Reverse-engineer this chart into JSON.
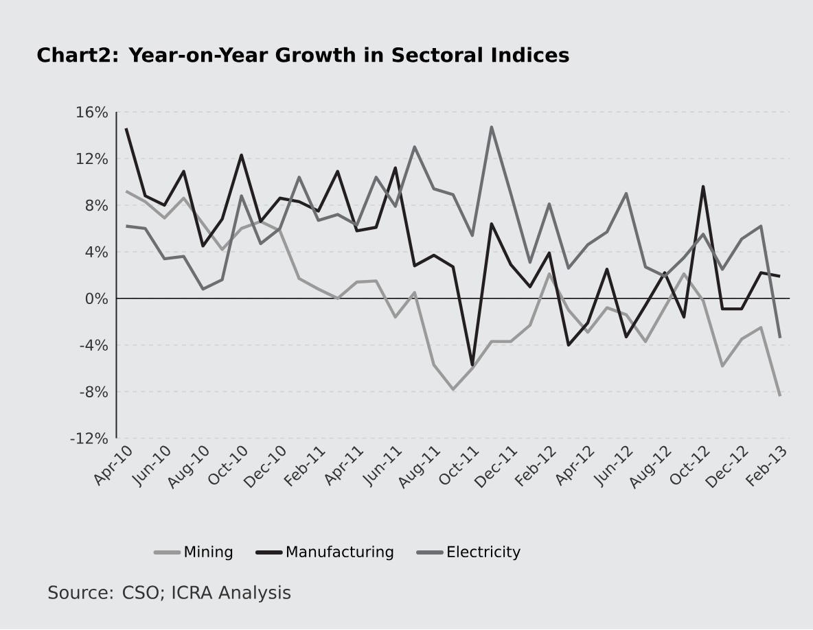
{
  "chart_data": {
    "type": "line",
    "title": "Chart2: Year-on-Year Growth in Sectoral Indices",
    "categories": [
      "Apr-10",
      null,
      "Jun-10",
      null,
      "Aug-10",
      null,
      "Oct-10",
      null,
      "Dec-10",
      null,
      "Feb-11",
      null,
      "Apr-11",
      null,
      "Jun-11",
      null,
      "Aug-11",
      null,
      "Oct-11",
      null,
      "Dec-11",
      null,
      "Feb-12",
      null,
      "Apr-12",
      null,
      "Jun-12",
      null,
      "Aug-12",
      null,
      "Oct-12",
      null,
      "Dec-12",
      null,
      "Feb-13"
    ],
    "series": [
      {
        "name": "Mining",
        "color": "#9a9a9a",
        "values": [
          9.2,
          8.3,
          6.9,
          8.6,
          6.4,
          4.2,
          6.0,
          6.6,
          5.8,
          1.7,
          0.8,
          0.0,
          1.4,
          1.5,
          -1.6,
          0.5,
          -5.7,
          -7.8,
          -6.0,
          -3.7,
          -3.7,
          -2.3,
          2.1,
          -1.0,
          -2.9,
          -0.8,
          -1.4,
          -3.7,
          -0.8,
          2.1,
          -0.2,
          -5.8,
          -3.5,
          -2.5,
          -8.4
        ]
      },
      {
        "name": "Manufacturing",
        "color": "#231f20",
        "values": [
          14.6,
          8.8,
          8.0,
          10.9,
          4.5,
          6.8,
          12.3,
          6.6,
          8.6,
          8.3,
          7.5,
          10.9,
          5.8,
          6.1,
          11.2,
          2.8,
          3.7,
          2.7,
          -5.7,
          6.4,
          2.9,
          1.0,
          3.9,
          -4.0,
          -2.1,
          2.5,
          -3.3,
          -0.6,
          2.2,
          -1.6,
          9.6,
          -0.9,
          -0.9,
          2.2,
          1.9
        ]
      },
      {
        "name": "Electricity",
        "color": "#6d6e71",
        "values": [
          6.2,
          6.0,
          3.4,
          3.6,
          0.8,
          1.6,
          8.8,
          4.7,
          6.0,
          10.4,
          6.7,
          7.2,
          6.3,
          10.4,
          7.9,
          13.0,
          9.4,
          8.9,
          5.4,
          14.7,
          9.0,
          3.1,
          8.1,
          2.6,
          4.6,
          5.7,
          9.0,
          2.7,
          1.9,
          3.5,
          5.5,
          2.5,
          5.1,
          6.2,
          -3.4
        ]
      }
    ],
    "ylim": [
      -12,
      16
    ],
    "yticks": [
      {
        "value": -12,
        "label": "-12%"
      },
      {
        "value": -8,
        "label": "-8%"
      },
      {
        "value": -4,
        "label": "-4%"
      },
      {
        "value": 0,
        "label": "0%"
      },
      {
        "value": 4,
        "label": "4%"
      },
      {
        "value": 8,
        "label": "8%"
      },
      {
        "value": 12,
        "label": "12%"
      },
      {
        "value": 16,
        "label": "16%"
      }
    ],
    "ref_lines": [
      {
        "axis": "y",
        "value": 0,
        "color": "#000000"
      }
    ],
    "grid": "y",
    "legend": "bottom",
    "marker": "none",
    "line_style": "solid",
    "annotations": [
      "Source: CSO; ICRA Analysis"
    ]
  }
}
